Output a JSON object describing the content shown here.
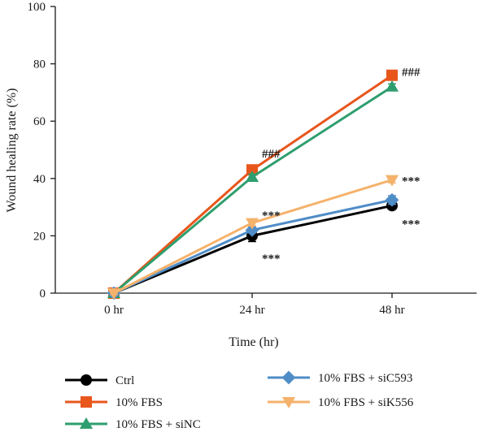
{
  "chart_data": {
    "type": "line",
    "xlabel": "Time (hr)",
    "ylabel": "Wound healing rate (%)",
    "categories": [
      "0 hr",
      "24 hr",
      "48 hr"
    ],
    "ylim": [
      0,
      100
    ],
    "yticks": [
      "0",
      "20",
      "40",
      "60",
      "80",
      "100"
    ],
    "grid": false,
    "legend_position": "bottom",
    "series": [
      {
        "name": "Ctrl",
        "color": "#000000",
        "marker": "circle",
        "values": [
          0,
          20,
          30.5
        ],
        "errors": [
          0.5,
          2,
          1
        ]
      },
      {
        "name": "10% FBS",
        "color": "#e8561c",
        "marker": "square",
        "values": [
          0,
          43,
          76
        ],
        "errors": [
          0.5,
          1,
          1
        ]
      },
      {
        "name": "10% FBS + siNC",
        "color": "#2e9e6e",
        "marker": "triangle-up",
        "values": [
          0,
          40.5,
          72
        ],
        "errors": [
          0.5,
          1,
          1
        ]
      },
      {
        "name": "10% FBS + siC593",
        "color": "#4f8dc7",
        "marker": "diamond",
        "values": [
          0,
          22,
          32.5
        ],
        "errors": [
          0.5,
          1,
          1.5
        ]
      },
      {
        "name": "10% FBS + siK556",
        "color": "#f5b26b",
        "marker": "triangle-down",
        "values": [
          0,
          24.5,
          39.5
        ],
        "errors": [
          0.5,
          1,
          1
        ]
      }
    ],
    "annotations": [
      {
        "text": "###",
        "x": "24 hr",
        "y": 49
      },
      {
        "text": "###",
        "x": "48 hr",
        "y": 77.5
      },
      {
        "text": "***",
        "x": "24 hr",
        "y": 27.5
      },
      {
        "text": "***",
        "x": "24 hr",
        "y": 12.5
      },
      {
        "text": "***",
        "x": "48 hr",
        "y": 39.5
      },
      {
        "text": "***",
        "x": "48 hr",
        "y": 24.5
      }
    ]
  }
}
